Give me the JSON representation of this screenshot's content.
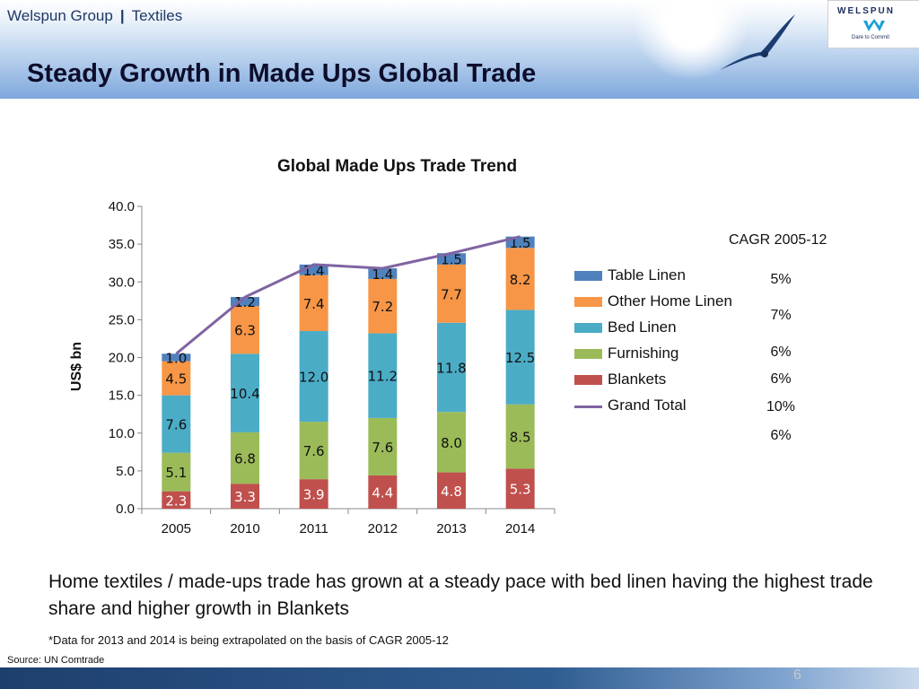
{
  "header": {
    "company": "Welspun Group",
    "separator": "|",
    "division": "Textiles",
    "title": "Steady Growth in Made Ups Global Trade"
  },
  "logo": {
    "name": "WELSPUN",
    "tagline": "Dare to Commit",
    "icon": "welspun-w-logo-icon"
  },
  "decor": {
    "bird_icon": "seagull-icon"
  },
  "colors": {
    "table_linen": "#4f81bd",
    "other_home_linen": "#f79646",
    "bed_linen": "#4bacc6",
    "furnishing": "#9bbb59",
    "blankets": "#c0504d",
    "grand_total": "#8064a2",
    "title_text": "#0d0d2b",
    "breadcrumb_text": "#1f3864"
  },
  "chart_data": {
    "type": "bar",
    "stacked": true,
    "title": "Global Made Ups Trade Trend",
    "xlabel": "",
    "ylabel": "US$ bn",
    "ylim": [
      0,
      40
    ],
    "yticks": [
      "0.0",
      "5.0",
      "10.0",
      "15.0",
      "20.0",
      "25.0",
      "30.0",
      "35.0",
      "40.0"
    ],
    "categories": [
      "2005",
      "2010",
      "2011",
      "2012",
      "2013",
      "2014"
    ],
    "series": [
      {
        "name": "Blankets",
        "values": [
          2.3,
          3.3,
          3.9,
          4.4,
          4.8,
          5.3
        ],
        "labels": [
          "2.3",
          "3.3",
          "3.9",
          "4.4",
          "4.8",
          "5.3"
        ]
      },
      {
        "name": "Furnishing",
        "values": [
          5.1,
          6.8,
          7.6,
          7.6,
          8.0,
          8.5
        ],
        "labels": [
          "5.1",
          "6.8",
          "7.6",
          "7.6",
          "8.0",
          "8.5"
        ]
      },
      {
        "name": "Bed Linen",
        "values": [
          7.6,
          10.4,
          12.0,
          11.2,
          11.8,
          12.5
        ],
        "labels": [
          "7.6",
          "10.4",
          "12.0",
          "11.2",
          "11.8",
          "12.5"
        ]
      },
      {
        "name": "Other Home Linen",
        "values": [
          4.5,
          6.3,
          7.4,
          7.2,
          7.7,
          8.2
        ],
        "labels": [
          "4.5",
          "6.3",
          "7.4",
          "7.2",
          "7.7",
          "8.2"
        ]
      },
      {
        "name": "Table Linen",
        "values": [
          1.0,
          1.2,
          1.4,
          1.4,
          1.5,
          1.5
        ],
        "labels": [
          "1.0",
          "1.2",
          "1.4",
          "1.4",
          "1.5",
          "1.5"
        ]
      }
    ],
    "grand_total": {
      "name": "Grand Total",
      "type": "line",
      "values": [
        20.5,
        28.0,
        32.3,
        31.8,
        33.8,
        36.0
      ]
    },
    "legend": {
      "position": "right",
      "items": [
        "Table Linen",
        "Other Home Linen",
        "Bed Linen",
        "Furnishing",
        "Blankets",
        "Grand Total"
      ]
    },
    "grid": false
  },
  "cagr": {
    "title": "CAGR 2005-12",
    "values": [
      "5%",
      "7%",
      "6%",
      "6%",
      "10%",
      "6%"
    ]
  },
  "summary": "Home textiles / made-ups trade has grown at a steady pace with bed linen having the highest trade share and higher growth in Blankets",
  "note": "*Data for 2013 and 2014 is being extrapolated on the basis of CAGR 2005-12",
  "source": "Source: UN Comtrade",
  "page_number": "6"
}
